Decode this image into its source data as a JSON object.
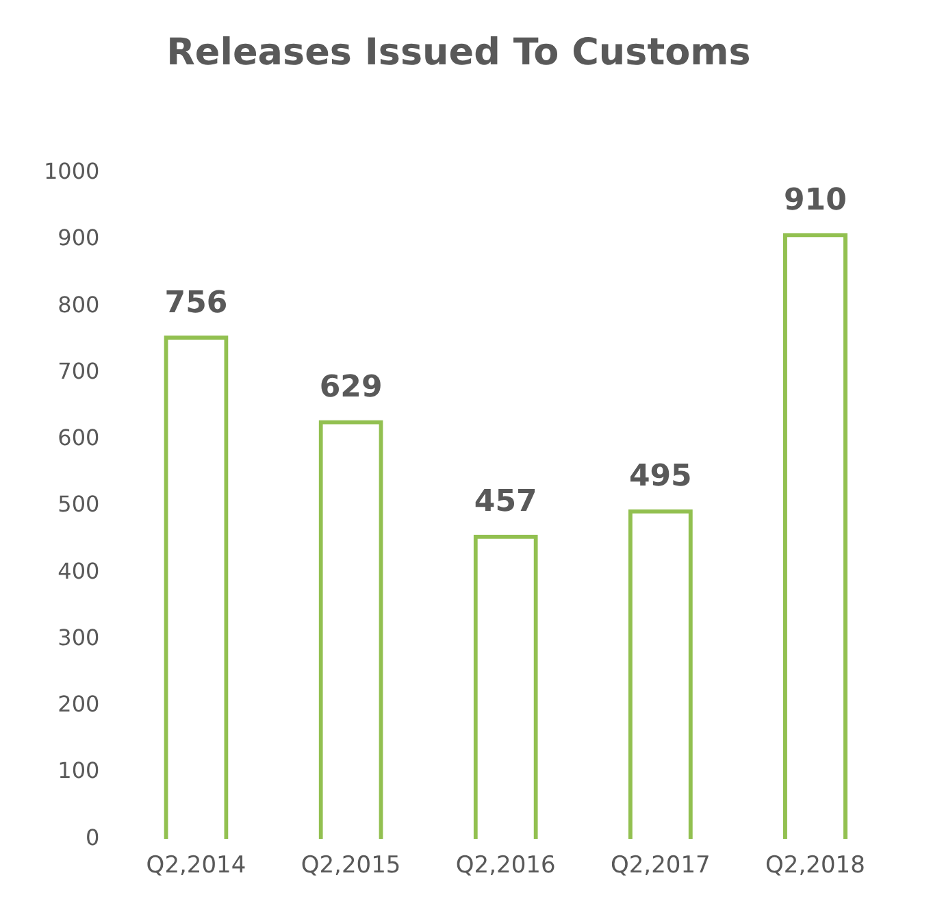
{
  "chart_data": {
    "type": "bar",
    "title": "Releases Issued To Customs",
    "categories": [
      "Q2,2014",
      "Q2,2015",
      "Q2,2016",
      "Q2,2017",
      "Q2,2018"
    ],
    "values": [
      756,
      629,
      457,
      495,
      910
    ],
    "color": "#92c050",
    "ylim": [
      0,
      1000
    ],
    "yticks": [
      0,
      100,
      200,
      300,
      400,
      500,
      600,
      700,
      800,
      900,
      1000
    ],
    "grid": false,
    "legend": false,
    "data_labels": true
  }
}
